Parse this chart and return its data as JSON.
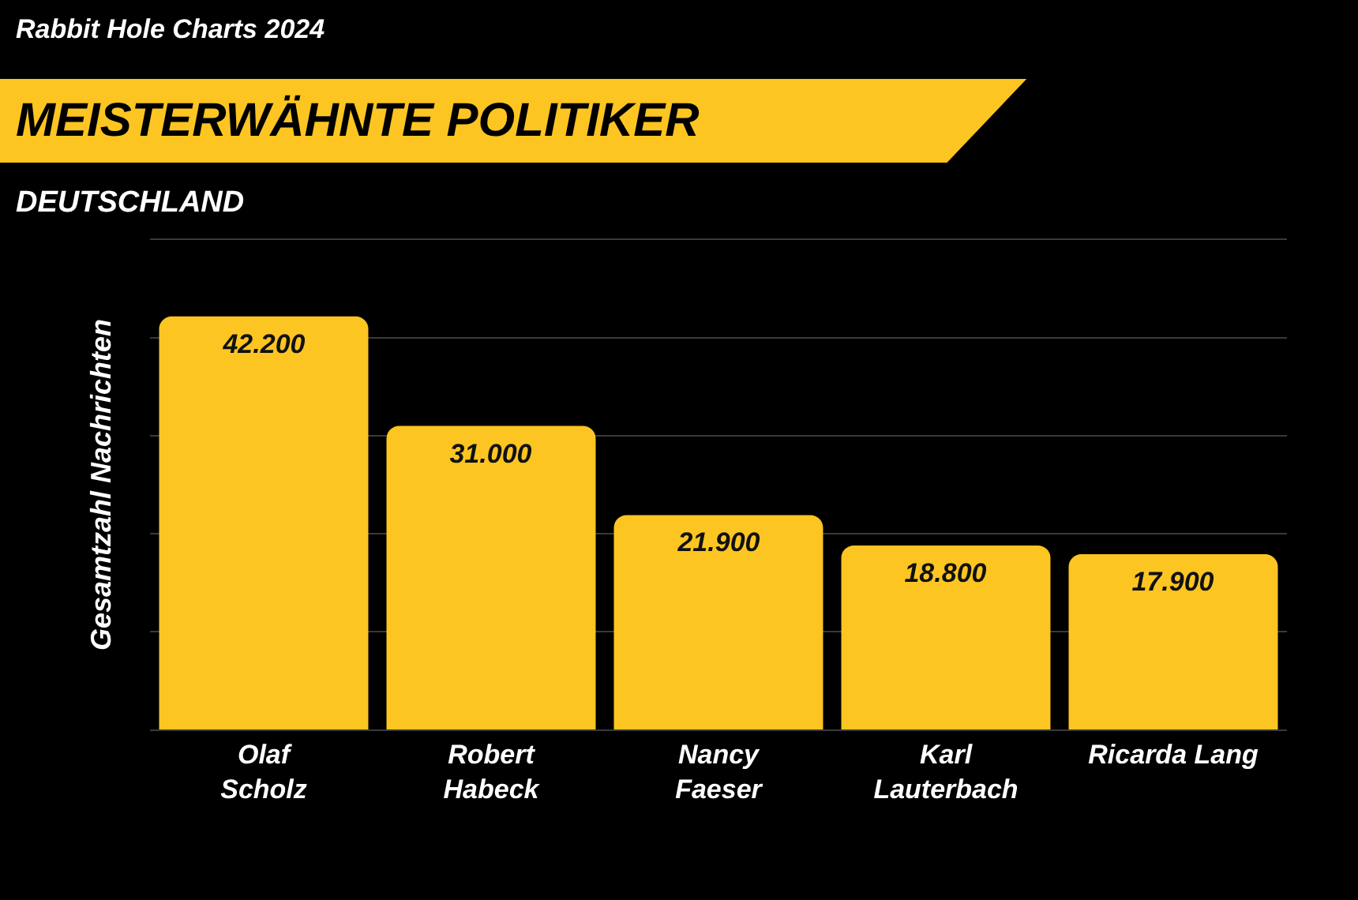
{
  "chart_data": {
    "type": "bar",
    "title": "MEISTERWÄHNTE POLITIKER",
    "subtitle": "DEUTSCHLAND",
    "annotations": [
      "Rabbit Hole Charts 2024"
    ],
    "ylabel": "Gesamtzahl Nachrichten",
    "categories": [
      "Olaf\nScholz",
      "Robert\nHabeck",
      "Nancy\nFaeser",
      "Karl\nLauterbach",
      "Ricarda Lang"
    ],
    "values": [
      42200,
      31000,
      21900,
      18800,
      17900
    ],
    "value_labels": [
      "42.200",
      "31.000",
      "21.900",
      "18.800",
      "17.900"
    ],
    "color": "#fdc521",
    "ylim": [
      0,
      50000
    ],
    "yticks": [
      {
        "value": 10000,
        "label": null
      },
      {
        "value": 20000,
        "label": null
      },
      {
        "value": 30000,
        "label": null
      },
      {
        "value": 40000,
        "label": null
      }
    ],
    "grid": "y",
    "tick_labels": "x",
    "legend": false
  }
}
